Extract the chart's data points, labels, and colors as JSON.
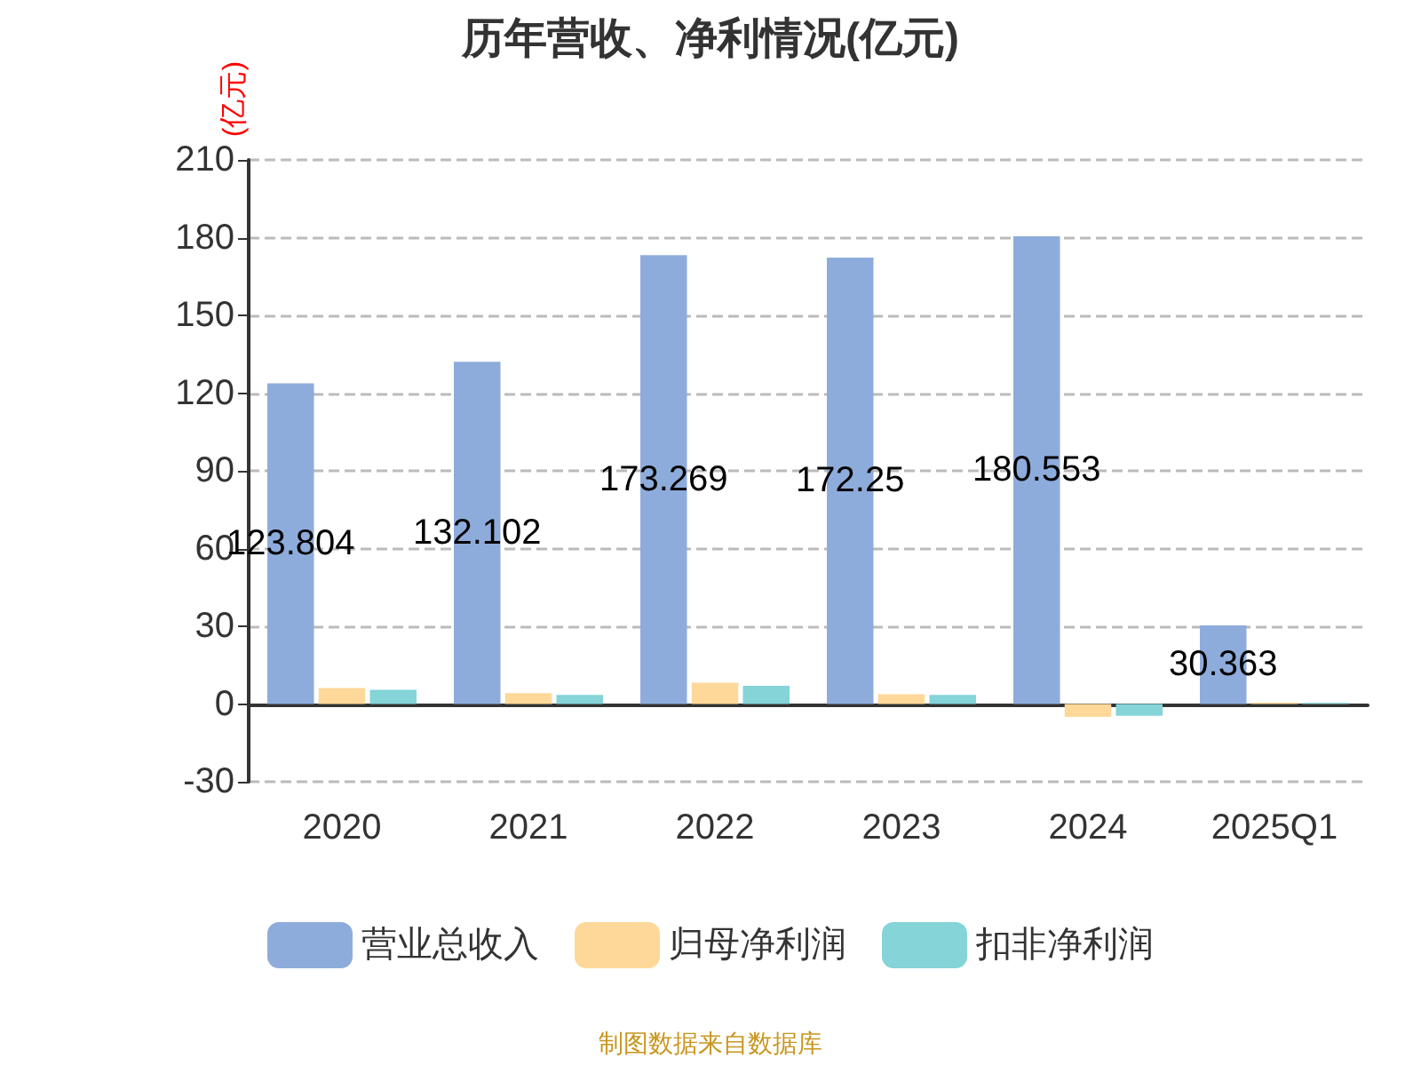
{
  "chart_data": {
    "type": "bar",
    "title": "历年营收、净利情况(亿元)",
    "ylabel": "(亿元)",
    "categories": [
      "2020",
      "2021",
      "2022",
      "2023",
      "2024",
      "2025Q1"
    ],
    "series": [
      {
        "name": "营业总收入",
        "color": "#8eacdb",
        "values": [
          123.804,
          132.102,
          173.269,
          172.25,
          180.553,
          30.363
        ],
        "value_labels": [
          "123.804",
          "132.102",
          "173.269",
          "172.25",
          "180.553",
          "30.363"
        ]
      },
      {
        "name": "归母净利润",
        "color": "#fed899",
        "values": [
          6.2,
          4.2,
          8.2,
          3.8,
          -5,
          0.5
        ]
      },
      {
        "name": "扣非净利润",
        "color": "#84d4d8",
        "values": [
          5.5,
          3.5,
          7,
          3.5,
          -4.5,
          0.4
        ]
      }
    ],
    "ylim": [
      -30,
      210
    ],
    "yticks": [
      -30,
      0,
      30,
      60,
      90,
      120,
      150,
      180,
      210
    ],
    "grid": "y",
    "legend": "bottom",
    "annotations": [
      "制图数据来自数据库"
    ]
  }
}
